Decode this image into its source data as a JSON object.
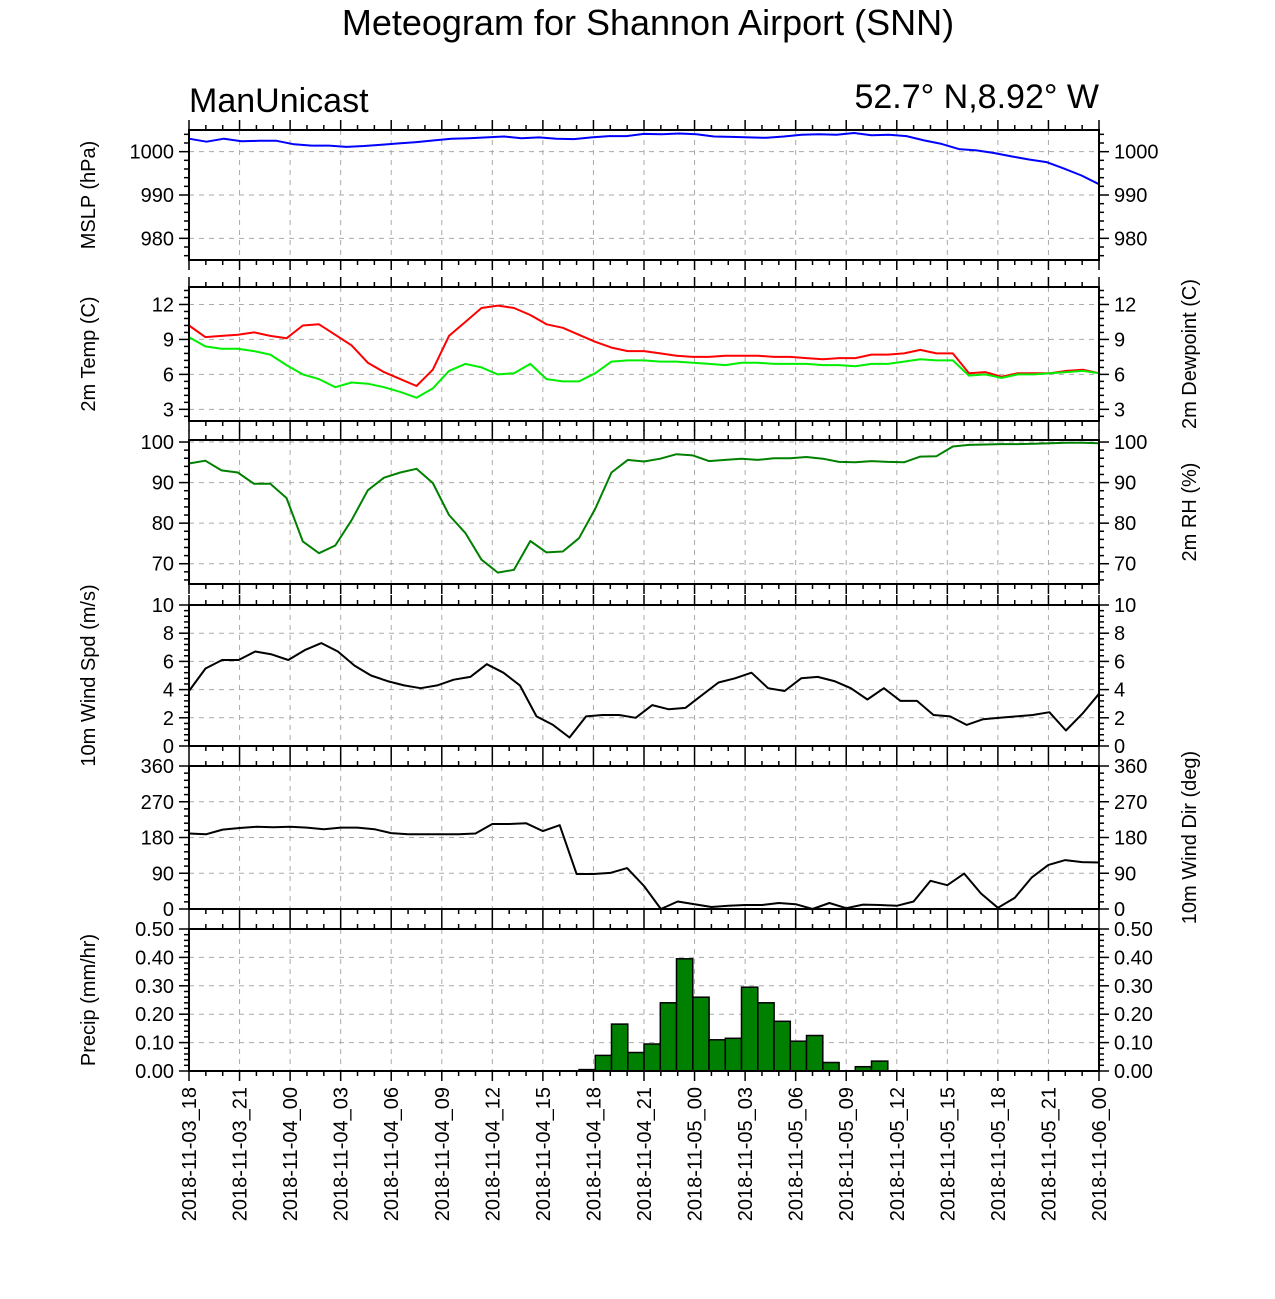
{
  "title": "Meteogram for Shannon Airport (SNN)",
  "model": "ManUnicast",
  "location": "52.7° N,8.92° W",
  "time_labels": [
    "2018-11-03_18",
    "2018-11-03_21",
    "2018-11-04_00",
    "2018-11-04_03",
    "2018-11-04_06",
    "2018-11-04_09",
    "2018-11-04_12",
    "2018-11-04_15",
    "2018-11-04_18",
    "2018-11-04_21",
    "2018-11-05_00",
    "2018-11-05_03",
    "2018-11-05_06",
    "2018-11-05_09",
    "2018-11-05_12",
    "2018-11-05_15",
    "2018-11-05_18",
    "2018-11-05_21",
    "2018-11-06_00"
  ],
  "chart_data": [
    {
      "type": "line",
      "panel": "mslp",
      "ylabel_left": "MSLP (hPa)",
      "ylabel_right": "",
      "ylim": [
        975,
        1005
      ],
      "yticks": [
        980,
        990,
        1000
      ],
      "yticklabels": [
        "980",
        "990",
        "1000"
      ],
      "grid": true,
      "series": [
        {
          "color": "#0000ff",
          "values": [
            1003,
            1002.3,
            1003,
            1002.4,
            1002.5,
            1002.5,
            1001.7,
            1001.4,
            1001.4,
            1001.1,
            1001.3,
            1001.6,
            1001.9,
            1002.2,
            1002.6,
            1003,
            1003.1,
            1003.3,
            1003.5,
            1003.1,
            1003.3,
            1003,
            1002.9,
            1003.3,
            1003.6,
            1003.6,
            1004.1,
            1004,
            1004.2,
            1004,
            1003.5,
            1003.4,
            1003.3,
            1003.2,
            1003.5,
            1003.9,
            1004,
            1003.9,
            1004.3,
            1003.8,
            1003.9,
            1003.6,
            1002.6,
            1001.8,
            1000.6,
            1000.3,
            999.7,
            998.9,
            998.2,
            997.6,
            996.1,
            994.5,
            992.5
          ]
        }
      ]
    },
    {
      "type": "line",
      "panel": "temp",
      "ylabel_left": "2m Temp (C)",
      "ylabel_right": "2m Dewpoint (C)",
      "ylim": [
        2,
        13.5
      ],
      "yticks": [
        3,
        6,
        9,
        12
      ],
      "yticklabels": [
        "3",
        "6",
        "9",
        "12"
      ],
      "grid": true,
      "series": [
        {
          "color": "#ff0000",
          "values": [
            10.2,
            9.2,
            9.3,
            9.4,
            9.6,
            9.3,
            9.1,
            10.2,
            10.3,
            9.4,
            8.5,
            7,
            6.2,
            5.6,
            5,
            6.4,
            9.3,
            10.5,
            11.7,
            11.9,
            11.7,
            11.1,
            10.3,
            10,
            9.4,
            8.8,
            8.3,
            8,
            8,
            7.8,
            7.6,
            7.5,
            7.5,
            7.6,
            7.6,
            7.6,
            7.5,
            7.5,
            7.4,
            7.3,
            7.4,
            7.4,
            7.7,
            7.7,
            7.8,
            8.1,
            7.8,
            7.8,
            6.1,
            6.2,
            5.8,
            6.1,
            6.1,
            6.1,
            6.3,
            6.4,
            6.1
          ]
        },
        {
          "color": "#00ee00",
          "values": [
            9.2,
            8.4,
            8.2,
            8.2,
            8,
            7.7,
            6.8,
            6,
            5.6,
            4.9,
            5.3,
            5.2,
            4.9,
            4.5,
            4,
            4.8,
            6.3,
            6.9,
            6.6,
            6,
            6.1,
            6.9,
            5.6,
            5.4,
            5.4,
            6.1,
            7.1,
            7.2,
            7.2,
            7.1,
            7.1,
            7,
            6.9,
            6.8,
            7,
            7,
            6.9,
            6.9,
            6.9,
            6.8,
            6.8,
            6.7,
            6.9,
            6.9,
            7.1,
            7.3,
            7.2,
            7.2,
            5.9,
            6,
            5.7,
            6,
            6,
            6.1,
            6.2,
            6.3,
            6.1
          ]
        }
      ]
    },
    {
      "type": "line",
      "panel": "rh",
      "ylabel_left": "",
      "ylabel_right": "2m RH (%)",
      "ylim": [
        65,
        100.5
      ],
      "yticks": [
        70,
        80,
        90,
        100
      ],
      "yticklabels": [
        "70",
        "80",
        "90",
        "100"
      ],
      "grid": true,
      "series": [
        {
          "color": "#008000",
          "values": [
            94.7,
            95.4,
            93,
            92.5,
            89.7,
            89.7,
            86.2,
            75.5,
            72.6,
            74.5,
            80.7,
            88.1,
            91.2,
            92.5,
            93.4,
            89.9,
            82,
            77.6,
            71,
            67.8,
            68.5,
            75.6,
            72.8,
            73,
            76.3,
            83.6,
            92.5,
            95.6,
            95.2,
            95.9,
            97,
            96.7,
            95.3,
            95.6,
            95.9,
            95.6,
            96,
            96,
            96.3,
            95.9,
            95.1,
            95,
            95.3,
            95.1,
            95,
            96.4,
            96.5,
            98.9,
            99.3,
            99.4,
            99.5,
            99.5,
            99.6,
            99.7,
            99.8,
            99.8,
            99.7
          ]
        }
      ]
    },
    {
      "type": "line",
      "panel": "wspd",
      "ylabel_left": "10m Wind Spd (m/s)",
      "ylabel_right": "",
      "ylim": [
        0,
        10
      ],
      "yticks": [
        0,
        2,
        4,
        6,
        8,
        10
      ],
      "yticklabels": [
        "0",
        "2",
        "4",
        "6",
        "8",
        "10"
      ],
      "grid": true,
      "series": [
        {
          "color": "#000000",
          "values": [
            3.9,
            5.5,
            6.1,
            6.1,
            6.7,
            6.5,
            6.1,
            6.8,
            7.3,
            6.7,
            5.7,
            5,
            4.6,
            4.3,
            4.1,
            4.3,
            4.7,
            4.9,
            5.8,
            5.2,
            4.3,
            2.1,
            1.5,
            0.6,
            2.1,
            2.2,
            2.2,
            2,
            2.9,
            2.6,
            2.7,
            3.6,
            4.5,
            4.8,
            5.2,
            4.1,
            3.9,
            4.8,
            4.9,
            4.6,
            4.1,
            3.3,
            4.1,
            3.2,
            3.2,
            2.2,
            2.1,
            1.5,
            1.9,
            2,
            2.1,
            2.2,
            2.4,
            1.1,
            2.3,
            3.7
          ]
        }
      ]
    },
    {
      "type": "line",
      "panel": "wdir",
      "ylabel_left": "",
      "ylabel_right": "10m Wind Dir (deg)",
      "ylim": [
        0,
        360
      ],
      "yticks": [
        0,
        90,
        180,
        270,
        360
      ],
      "yticklabels": [
        "0",
        "90",
        "180",
        "270",
        "360"
      ],
      "grid": true,
      "series": [
        {
          "color": "#000000",
          "values": [
            190,
            188,
            200,
            204,
            207,
            206,
            207,
            205,
            201,
            205,
            205,
            201,
            191,
            188,
            188,
            188,
            188,
            190,
            214,
            214,
            216,
            196,
            211,
            88,
            88,
            91,
            103,
            58,
            0,
            19,
            12,
            5,
            8,
            10,
            10,
            15,
            12,
            0,
            15,
            2,
            11,
            10,
            8,
            19,
            71,
            60,
            89,
            39,
            3,
            28,
            79,
            111,
            123,
            118,
            117
          ]
        }
      ]
    },
    {
      "type": "bar",
      "panel": "precip",
      "ylabel_left": "Precip (mm/hr)",
      "ylabel_right": "",
      "ylim": [
        0,
        0.5
      ],
      "yticks": [
        0,
        0.1,
        0.2,
        0.3,
        0.4,
        0.5
      ],
      "yticklabels": [
        "0.00",
        "0.10",
        "0.20",
        "0.30",
        "0.40",
        "0.50"
      ],
      "grid": true,
      "bar_color": "#008000",
      "values": [
        0,
        0,
        0,
        0,
        0,
        0,
        0,
        0,
        0,
        0,
        0,
        0,
        0,
        0,
        0,
        0,
        0,
        0,
        0,
        0,
        0,
        0,
        0,
        0,
        0.005,
        0.055,
        0.165,
        0.065,
        0.095,
        0.24,
        0.395,
        0.26,
        0.11,
        0.115,
        0.295,
        0.24,
        0.175,
        0.105,
        0.125,
        0.03,
        0,
        0.015,
        0.035,
        0,
        0,
        0,
        0,
        0,
        0,
        0,
        0,
        0,
        0,
        0,
        0,
        0,
        0
      ]
    }
  ]
}
